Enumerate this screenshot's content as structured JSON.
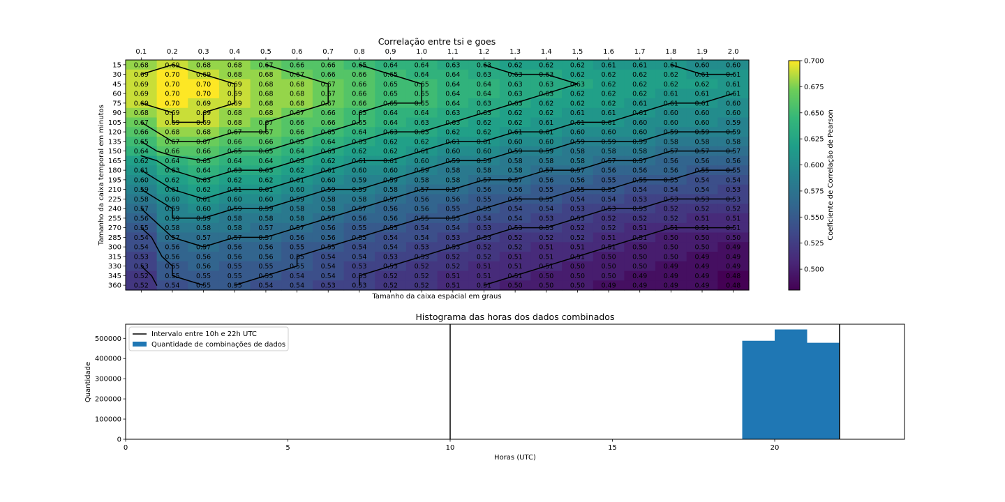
{
  "chart_data": [
    {
      "type": "heatmap",
      "title": "Correlação entre tsi e goes",
      "xlabel": "Tamanho da caixa espacial em graus",
      "ylabel": "Tamanho da caixa temporal em minutos",
      "colorbar_label": "Coeficiente de Correlação de Pearson",
      "colormap": "viridis",
      "vmin": 0.48,
      "vmax": 0.7,
      "colorbar_ticks": [
        "0.500",
        "0.525",
        "0.550",
        "0.575",
        "0.600",
        "0.625",
        "0.650",
        "0.675",
        "0.700"
      ],
      "x": [
        "0.1",
        "0.2",
        "0.3",
        "0.4",
        "0.5",
        "0.6",
        "0.7",
        "0.8",
        "0.9",
        "1.0",
        "1.1",
        "1.2",
        "1.3",
        "1.4",
        "1.5",
        "1.6",
        "1.7",
        "1.8",
        "1.9",
        "2.0"
      ],
      "y": [
        "15",
        "30",
        "45",
        "60",
        "75",
        "90",
        "105",
        "120",
        "135",
        "150",
        "165",
        "180",
        "195",
        "210",
        "225",
        "240",
        "255",
        "270",
        "285",
        "300",
        "315",
        "330",
        "345",
        "360"
      ],
      "values": [
        [
          0.68,
          0.69,
          0.68,
          0.68,
          0.67,
          0.66,
          0.66,
          0.65,
          0.64,
          0.64,
          0.63,
          0.63,
          0.62,
          0.62,
          0.62,
          0.61,
          0.61,
          0.61,
          0.6,
          0.6
        ],
        [
          0.69,
          0.7,
          0.69,
          0.68,
          0.68,
          0.67,
          0.66,
          0.66,
          0.65,
          0.64,
          0.64,
          0.63,
          0.63,
          0.63,
          0.62,
          0.62,
          0.62,
          0.62,
          0.61,
          0.61
        ],
        [
          0.69,
          0.7,
          0.7,
          0.69,
          0.68,
          0.68,
          0.67,
          0.66,
          0.65,
          0.65,
          0.64,
          0.64,
          0.63,
          0.63,
          0.63,
          0.62,
          0.62,
          0.62,
          0.62,
          0.61
        ],
        [
          0.69,
          0.7,
          0.7,
          0.69,
          0.68,
          0.68,
          0.67,
          0.66,
          0.65,
          0.65,
          0.64,
          0.64,
          0.63,
          0.63,
          0.62,
          0.62,
          0.62,
          0.61,
          0.61,
          0.61
        ],
        [
          0.69,
          0.7,
          0.69,
          0.69,
          0.68,
          0.68,
          0.67,
          0.66,
          0.65,
          0.65,
          0.64,
          0.63,
          0.63,
          0.62,
          0.62,
          0.62,
          0.61,
          0.61,
          0.61,
          0.6
        ],
        [
          0.68,
          0.69,
          0.69,
          0.68,
          0.68,
          0.67,
          0.66,
          0.65,
          0.64,
          0.64,
          0.63,
          0.63,
          0.62,
          0.62,
          0.61,
          0.61,
          0.61,
          0.6,
          0.6,
          0.6
        ],
        [
          0.67,
          0.69,
          0.69,
          0.68,
          0.67,
          0.66,
          0.66,
          0.65,
          0.64,
          0.63,
          0.63,
          0.62,
          0.62,
          0.61,
          0.61,
          0.61,
          0.6,
          0.6,
          0.6,
          0.59
        ],
        [
          0.66,
          0.68,
          0.68,
          0.67,
          0.67,
          0.66,
          0.65,
          0.64,
          0.63,
          0.63,
          0.62,
          0.62,
          0.61,
          0.61,
          0.6,
          0.6,
          0.6,
          0.59,
          0.59,
          0.59
        ],
        [
          0.65,
          0.67,
          0.67,
          0.66,
          0.66,
          0.65,
          0.64,
          0.63,
          0.62,
          0.62,
          0.61,
          0.61,
          0.6,
          0.6,
          0.59,
          0.59,
          0.59,
          0.58,
          0.58,
          0.58
        ],
        [
          0.64,
          0.66,
          0.66,
          0.65,
          0.65,
          0.64,
          0.63,
          0.62,
          0.62,
          0.61,
          0.6,
          0.6,
          0.59,
          0.59,
          0.58,
          0.58,
          0.58,
          0.57,
          0.57,
          0.57
        ],
        [
          0.62,
          0.64,
          0.65,
          0.64,
          0.64,
          0.63,
          0.62,
          0.61,
          0.61,
          0.6,
          0.59,
          0.59,
          0.58,
          0.58,
          0.58,
          0.57,
          0.57,
          0.56,
          0.56,
          0.56
        ],
        [
          0.61,
          0.63,
          0.64,
          0.63,
          0.63,
          0.62,
          0.61,
          0.6,
          0.6,
          0.59,
          0.58,
          0.58,
          0.58,
          0.57,
          0.57,
          0.56,
          0.56,
          0.56,
          0.55,
          0.55
        ],
        [
          0.6,
          0.62,
          0.63,
          0.62,
          0.62,
          0.61,
          0.6,
          0.59,
          0.59,
          0.58,
          0.58,
          0.57,
          0.57,
          0.56,
          0.56,
          0.55,
          0.55,
          0.55,
          0.54,
          0.54
        ],
        [
          0.59,
          0.61,
          0.62,
          0.61,
          0.61,
          0.6,
          0.59,
          0.59,
          0.58,
          0.57,
          0.57,
          0.56,
          0.56,
          0.55,
          0.55,
          0.55,
          0.54,
          0.54,
          0.54,
          0.53
        ],
        [
          0.58,
          0.6,
          0.61,
          0.6,
          0.6,
          0.59,
          0.58,
          0.58,
          0.57,
          0.56,
          0.56,
          0.55,
          0.55,
          0.55,
          0.54,
          0.54,
          0.53,
          0.53,
          0.53,
          0.53
        ],
        [
          0.57,
          0.59,
          0.6,
          0.59,
          0.59,
          0.58,
          0.58,
          0.57,
          0.56,
          0.56,
          0.55,
          0.55,
          0.54,
          0.54,
          0.53,
          0.53,
          0.53,
          0.52,
          0.52,
          0.52
        ],
        [
          0.56,
          0.59,
          0.59,
          0.58,
          0.58,
          0.58,
          0.57,
          0.56,
          0.56,
          0.55,
          0.55,
          0.54,
          0.54,
          0.53,
          0.53,
          0.52,
          0.52,
          0.52,
          0.51,
          0.51
        ],
        [
          0.55,
          0.58,
          0.58,
          0.58,
          0.57,
          0.57,
          0.56,
          0.55,
          0.55,
          0.54,
          0.54,
          0.53,
          0.53,
          0.53,
          0.52,
          0.52,
          0.51,
          0.51,
          0.51,
          0.51
        ],
        [
          0.54,
          0.57,
          0.57,
          0.57,
          0.57,
          0.56,
          0.56,
          0.55,
          0.54,
          0.54,
          0.53,
          0.53,
          0.52,
          0.52,
          0.52,
          0.51,
          0.51,
          0.5,
          0.5,
          0.5
        ],
        [
          0.54,
          0.56,
          0.57,
          0.56,
          0.56,
          0.55,
          0.55,
          0.54,
          0.54,
          0.53,
          0.53,
          0.52,
          0.52,
          0.51,
          0.51,
          0.51,
          0.5,
          0.5,
          0.5,
          0.49
        ],
        [
          0.53,
          0.56,
          0.56,
          0.56,
          0.56,
          0.55,
          0.54,
          0.54,
          0.53,
          0.53,
          0.52,
          0.52,
          0.51,
          0.51,
          0.51,
          0.5,
          0.5,
          0.5,
          0.49,
          0.49
        ],
        [
          0.53,
          0.55,
          0.56,
          0.55,
          0.55,
          0.55,
          0.54,
          0.53,
          0.53,
          0.52,
          0.52,
          0.51,
          0.51,
          0.51,
          0.5,
          0.5,
          0.5,
          0.49,
          0.49,
          0.49
        ],
        [
          0.52,
          0.55,
          0.55,
          0.55,
          0.55,
          0.54,
          0.54,
          0.53,
          0.52,
          0.52,
          0.51,
          0.51,
          0.51,
          0.5,
          0.5,
          0.5,
          0.49,
          0.49,
          0.49,
          0.48
        ],
        [
          0.52,
          0.54,
          0.55,
          0.55,
          0.54,
          0.54,
          0.53,
          0.53,
          0.52,
          0.52,
          0.51,
          0.51,
          0.5,
          0.5,
          0.5,
          0.49,
          0.49,
          0.49,
          0.49,
          0.48
        ]
      ],
      "contour_levels": [
        0.51,
        0.53,
        0.55,
        0.57,
        0.59,
        0.61,
        0.63,
        0.65,
        0.67,
        0.69
      ]
    },
    {
      "type": "bar",
      "title": "Histograma das horas dos dados combinados",
      "xlabel": "Horas (UTC)",
      "ylabel": "Quantidade",
      "xlim": [
        0,
        24
      ],
      "ylim": [
        0,
        570000
      ],
      "x_ticks": [
        0,
        5,
        10,
        15,
        20
      ],
      "y_ticks": [
        0,
        100000,
        200000,
        300000,
        400000,
        500000
      ],
      "bins": [
        {
          "start": 19,
          "end": 20,
          "value": 488000
        },
        {
          "start": 20,
          "end": 21,
          "value": 544000
        },
        {
          "start": 21,
          "end": 22,
          "value": 478000
        }
      ],
      "vlines": [
        10,
        22
      ],
      "bar_color": "#1f77b4",
      "line_color": "#000000",
      "legend_position": "upper-left",
      "legend": [
        {
          "label": "Intervalo entre 10h e 22h UTC",
          "kind": "line"
        },
        {
          "label": "Quantidade de combinações de dados",
          "kind": "patch"
        }
      ]
    }
  ]
}
